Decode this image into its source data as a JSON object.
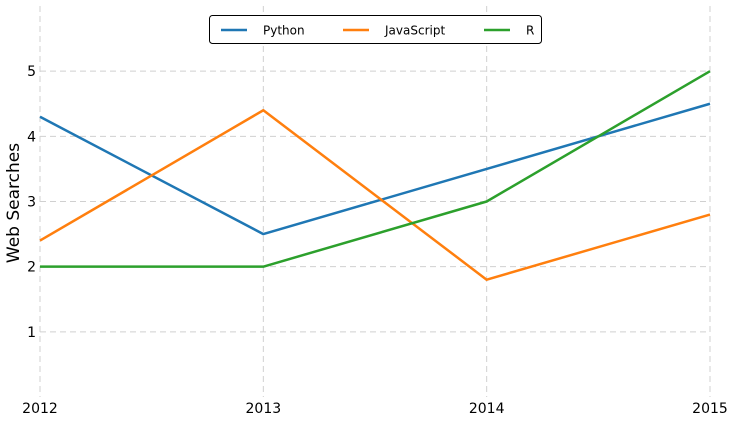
{
  "chart_data": {
    "type": "line",
    "title": "",
    "xlabel": "",
    "ylabel": "Web Searches",
    "x": [
      2012,
      2013,
      2014,
      2015
    ],
    "x_tick_labels": [
      "2012",
      "2013",
      "2014",
      "2015"
    ],
    "y_ticks": [
      1,
      2,
      3,
      4,
      5
    ],
    "y_tick_labels": [
      "1",
      "2",
      "3",
      "4",
      "5"
    ],
    "xlim": [
      2012,
      2015
    ],
    "ylim": [
      0,
      6
    ],
    "grid": true,
    "legend_position": "top-center",
    "series": [
      {
        "name": "Python",
        "color": "#1f77b4",
        "values": [
          4.3,
          2.5,
          3.5,
          4.5
        ]
      },
      {
        "name": "JavaScript",
        "color": "#ff7f0e",
        "values": [
          2.4,
          4.4,
          1.8,
          2.8
        ]
      },
      {
        "name": "R",
        "color": "#2ca02c",
        "values": [
          2.0,
          2.0,
          3.0,
          5.0
        ]
      }
    ]
  }
}
